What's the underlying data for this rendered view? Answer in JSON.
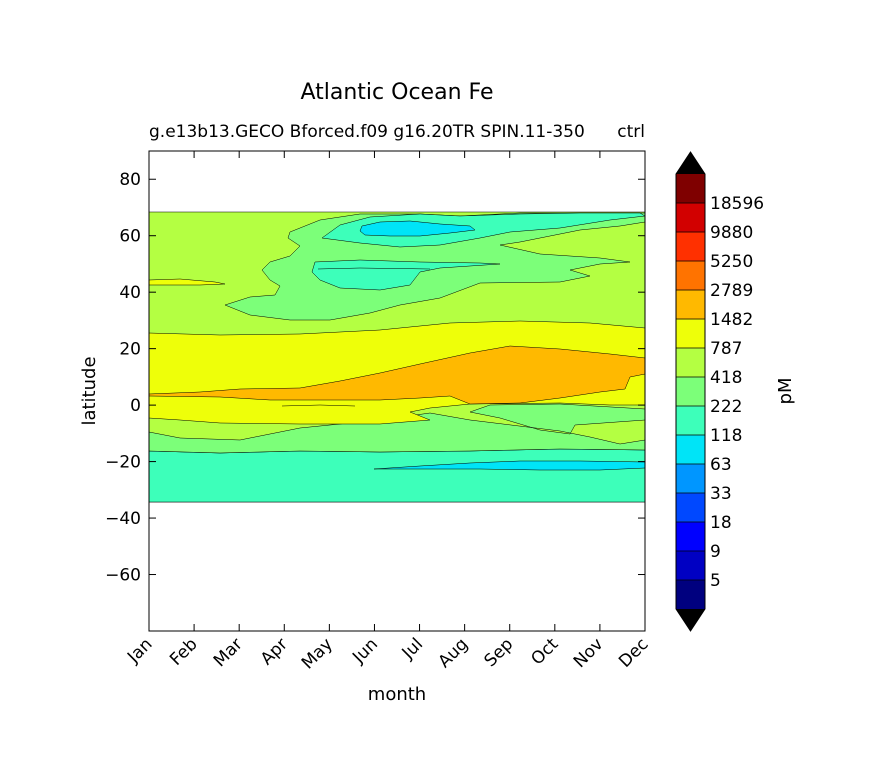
{
  "chart_data": {
    "type": "contourf",
    "title": "Atlantic Ocean Fe",
    "subtitle_left": "g.e13b13.GECO Bforced.f09 g16.20TR SPIN.11-350",
    "subtitle_right": "ctrl",
    "xlabel": "month",
    "ylabel": "latitude",
    "xlim": [
      0,
      11
    ],
    "ylim": [
      -80,
      90
    ],
    "months": [
      "Jan",
      "Feb",
      "Mar",
      "Apr",
      "May",
      "Jun",
      "Jul",
      "Aug",
      "Sep",
      "Oct",
      "Nov",
      "Dec"
    ],
    "y_ticks": [
      80,
      60,
      40,
      20,
      0,
      -20,
      -40,
      -60
    ],
    "y_tick_labels": [
      "80",
      "60",
      "40",
      "20",
      "0",
      "−20",
      "−40",
      "−60"
    ],
    "data_extent_lat": [
      -34,
      69
    ],
    "colorbar": {
      "label": "pM",
      "levels": [
        5,
        9,
        18,
        33,
        63,
        118,
        222,
        418,
        787,
        1482,
        2789,
        5250,
        9880,
        18596
      ],
      "level_labels": [
        "18596",
        "9880",
        "5250",
        "2789",
        "1482",
        "787",
        "418",
        "222",
        "118",
        "63",
        "33",
        "18",
        "9",
        "5"
      ],
      "colors": [
        "#00007f",
        "#0000c3",
        "#0000ff",
        "#0048ff",
        "#0096ff",
        "#00e4f7",
        "#3dffba",
        "#7cff79",
        "#b4ff42",
        "#eeff09",
        "#ffb900",
        "#ff7300",
        "#ff3000",
        "#d20000",
        "#7f0000"
      ],
      "extend": "both",
      "under_color": "#000000",
      "over_color": "#000000"
    },
    "bands": [
      {
        "name": "south-teal",
        "level": "118-222",
        "lat_range": [
          -34,
          -15
        ]
      },
      {
        "name": "south-green",
        "level": "222-418",
        "lat_range": [
          -15,
          -8
        ]
      },
      {
        "name": "south-lime",
        "level": "418-787",
        "lat_range": [
          -10,
          -3
        ]
      },
      {
        "name": "equator-yellow",
        "level": "787-1482",
        "lat_range": [
          -6,
          26
        ]
      },
      {
        "name": "equator-orange",
        "level": "1482-2789",
        "lat_range": [
          0,
          21
        ]
      },
      {
        "name": "north-lime",
        "level": "418-787",
        "lat_range": [
          26,
          69
        ]
      },
      {
        "name": "north-green",
        "level": "222-418",
        "lat_range": [
          30,
          69
        ]
      },
      {
        "name": "north-teal",
        "level": "118-222",
        "lat_range": [
          36,
          68
        ]
      },
      {
        "name": "north-cyan",
        "level": "63-118",
        "lat_range": [
          60,
          65
        ]
      },
      {
        "name": "south-cyan",
        "level": "63-118",
        "lat_range": [
          -23,
          -19
        ]
      }
    ]
  }
}
